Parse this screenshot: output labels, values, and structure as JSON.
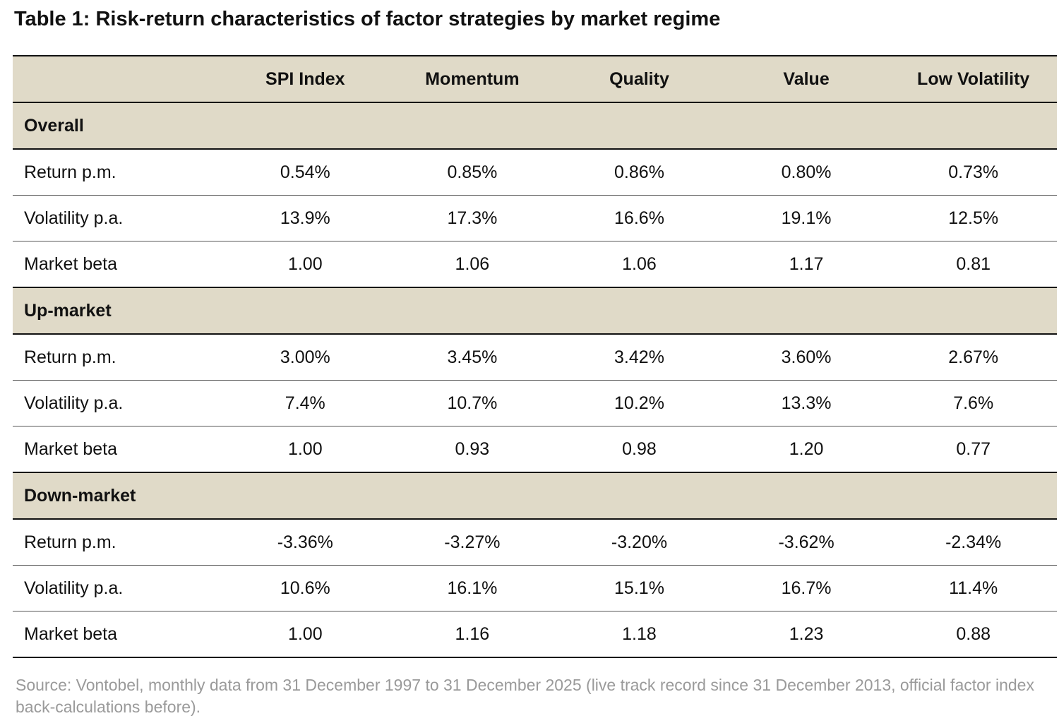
{
  "title": "Table 1: Risk-return characteristics of factor strategies by market regime",
  "columns": [
    "",
    "SPI Index",
    "Momentum",
    "Quality",
    "Value",
    "Low Volatility"
  ],
  "sections": [
    {
      "name": "Overall",
      "rows": [
        {
          "label": "Return p.m.",
          "values": [
            "0.54%",
            "0.85%",
            "0.86%",
            "0.80%",
            "0.73%"
          ]
        },
        {
          "label": "Volatility p.a.",
          "values": [
            "13.9%",
            "17.3%",
            "16.6%",
            "19.1%",
            "12.5%"
          ]
        },
        {
          "label": "Market beta",
          "values": [
            "1.00",
            "1.06",
            "1.06",
            "1.17",
            "0.81"
          ]
        }
      ]
    },
    {
      "name": "Up-market",
      "rows": [
        {
          "label": "Return p.m.",
          "values": [
            "3.00%",
            "3.45%",
            "3.42%",
            "3.60%",
            "2.67%"
          ]
        },
        {
          "label": "Volatility p.a.",
          "values": [
            "7.4%",
            "10.7%",
            "10.2%",
            "13.3%",
            "7.6%"
          ]
        },
        {
          "label": "Market beta",
          "values": [
            "1.00",
            "0.93",
            "0.98",
            "1.20",
            "0.77"
          ]
        }
      ]
    },
    {
      "name": "Down-market",
      "rows": [
        {
          "label": "Return p.m.",
          "values": [
            "-3.36%",
            "-3.27%",
            "-3.20%",
            "-3.62%",
            "-2.34%"
          ]
        },
        {
          "label": "Volatility p.a.",
          "values": [
            "10.6%",
            "16.1%",
            "15.1%",
            "16.7%",
            "11.4%"
          ]
        },
        {
          "label": "Market beta",
          "values": [
            "1.00",
            "1.16",
            "1.18",
            "1.23",
            "0.88"
          ]
        }
      ]
    }
  ],
  "source": "Source: Vontobel, monthly data from 31 December 1997 to 31 December 2025 (live track record since 31 December 2013, official factor index back-calculations before).",
  "colors": {
    "header_bg": "#e0dac8",
    "source_text": "#9a9a9a"
  }
}
